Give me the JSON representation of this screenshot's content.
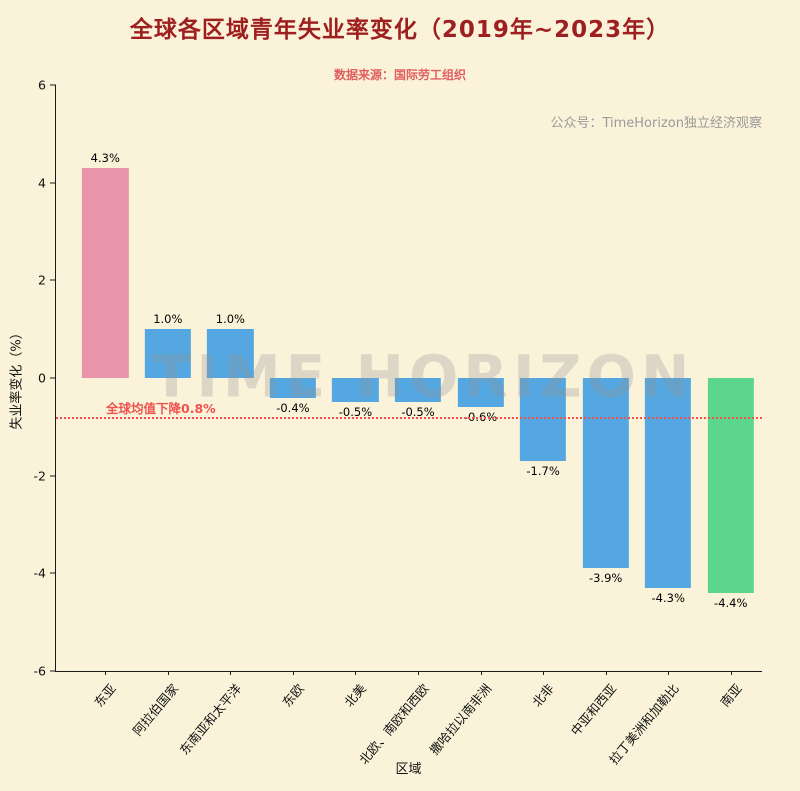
{
  "title": "全球各区域青年失业率变化（2019年~2023年）",
  "subtitle": "数据来源：国际劳工组织",
  "watermark": {
    "account": "公众号：TimeHorizon独立经济观察",
    "background": "TIME HORIZON"
  },
  "chart_data": {
    "type": "bar",
    "title": "全球各区域青年失业率变化（2019年~2023年）",
    "xlabel": "区域",
    "ylabel": "失业率变化（%）",
    "ylim": [
      -6,
      6
    ],
    "yticks": [
      6,
      4,
      2,
      0,
      -2,
      -4,
      -6
    ],
    "grid": false,
    "legend": false,
    "categories": [
      "东亚",
      "阿拉伯国家",
      "东南亚和太平洋",
      "东欧",
      "北美",
      "北欧、南欧和西欧",
      "撒哈拉以南非洲",
      "北非",
      "中亚和西亚",
      "拉丁美洲和加勒比",
      "南亚"
    ],
    "values": [
      4.3,
      1.0,
      1.0,
      -0.4,
      -0.5,
      -0.5,
      -0.6,
      -1.7,
      -3.9,
      -4.3,
      -4.4
    ],
    "labels": [
      "4.3%",
      "1.0%",
      "1.0%",
      "-0.4%",
      "-0.5%",
      "-0.5%",
      "-0.6%",
      "-1.7%",
      "-3.9%",
      "-4.3%",
      "-4.4%"
    ],
    "bar_colors": [
      "#e895ab",
      "#54a7e0",
      "#54a7e0",
      "#54a7e0",
      "#54a7e0",
      "#54a7e0",
      "#54a7e0",
      "#54a7e0",
      "#54a7e0",
      "#54a7e0",
      "#5cd68d"
    ],
    "reference_line": {
      "value": -0.8,
      "label": "全球均值下降0.8%",
      "color": "#f0524f",
      "style": "dotted"
    }
  },
  "colors": {
    "background": "#faf3da",
    "title": "#9e1f1f",
    "subtitle": "#e06060",
    "account_watermark": "#9a9a9a",
    "axis": "#1a1a1a",
    "bar_pink": "#e895ab",
    "bar_blue": "#54a7e0",
    "bar_green": "#5cd68d",
    "reference": "#f0524f"
  }
}
